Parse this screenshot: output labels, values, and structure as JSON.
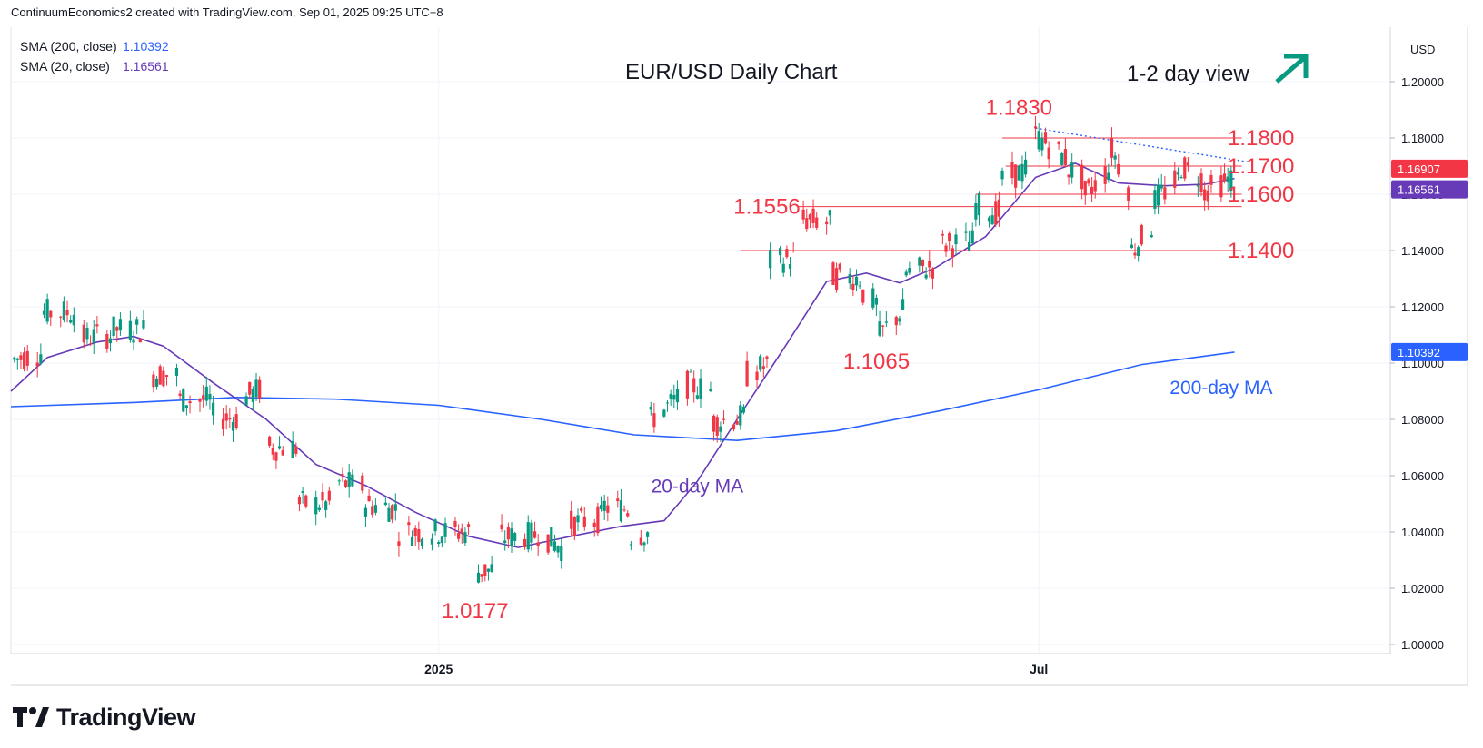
{
  "header": {
    "attribution": "ContinuumEconomics2 created with TradingView.com, Sep 01, 2025 09:25 UTC+8"
  },
  "legend": [
    {
      "label": "SMA (200, close)",
      "value": "1.10392",
      "color": "#2962ff"
    },
    {
      "label": "SMA (20, close)",
      "value": "1.16561",
      "color": "#673ab7"
    }
  ],
  "brand": {
    "name": "TradingView"
  },
  "chart_data": {
    "type": "candlestick",
    "title": "EUR/USD Daily Chart",
    "subtitle": "1-2 day view",
    "direction_icon": "up-right-arrow-icon",
    "currency": "USD",
    "ylim": [
      1.0,
      1.2
    ],
    "y_ticks": [
      "1.00000",
      "1.02000",
      "1.04000",
      "1.06000",
      "1.08000",
      "1.10000",
      "1.12000",
      "1.14000",
      "1.16000",
      "1.18000",
      "1.20000"
    ],
    "x_labels": [
      {
        "label": "2025",
        "x": "2025-01-01"
      },
      {
        "label": "Jul",
        "x": "2025-07-01"
      }
    ],
    "xlim": [
      "2024-08-25",
      "2025-10-15"
    ],
    "colors": {
      "up": "#089981",
      "down": "#f23645",
      "sma200": "#2962ff",
      "sma20": "#673ab7",
      "level": "#f23645",
      "arrow": "#089981",
      "trend": "#2962ff"
    },
    "price_labels": [
      {
        "value": "1.16907",
        "y": 1.16907,
        "color": "#f23645"
      },
      {
        "value": "1.16561",
        "y": 1.16561,
        "color": "#673ab7"
      },
      {
        "value": "1.10392",
        "y": 1.10392,
        "color": "#2962ff"
      }
    ],
    "levels": [
      {
        "label": "1.1800",
        "y": 1.18,
        "from": "2025-06-20"
      },
      {
        "label": "1.1700",
        "y": 1.17,
        "from": "2025-06-21"
      },
      {
        "label": "1.1600",
        "y": 1.16,
        "from": "2025-06-12"
      },
      {
        "label": "1.1556",
        "y": 1.1556,
        "from": "2025-04-19"
      },
      {
        "label": "1.1400",
        "y": 1.14,
        "from": "2025-04-02"
      }
    ],
    "annotations": [
      {
        "text": "1.1830",
        "x": "2025-06-25",
        "y": 1.183
      },
      {
        "text": "1.1556",
        "x": "2025-04-10",
        "y": 1.1556
      },
      {
        "text": "1.1065",
        "x": "2025-05-13",
        "y": 1.1065
      },
      {
        "text": "1.0177",
        "x": "2025-01-12",
        "y": 1.0177
      },
      {
        "text": "1.1800",
        "x": "2025-09-06",
        "y": 1.18
      },
      {
        "text": "1.1700",
        "x": "2025-09-06",
        "y": 1.17
      },
      {
        "text": "1.1600",
        "x": "2025-09-06",
        "y": 1.16
      },
      {
        "text": "1.1400",
        "x": "2025-09-06",
        "y": 1.14
      },
      {
        "text": "20-day MA",
        "x": "2025-03-20",
        "y": 1.054,
        "color": "#673ab7"
      },
      {
        "text": "200-day MA",
        "x": "2025-08-25",
        "y": 1.089,
        "color": "#2962ff"
      }
    ],
    "trendline": [
      {
        "x": "2025-06-30",
        "y": 1.1835
      },
      {
        "x": "2025-09-02",
        "y": 1.1715
      }
    ],
    "series": [
      {
        "name": "SMA (200, close)",
        "type": "line",
        "color": "#2962ff",
        "points": [
          [
            "2024-08-25",
            1.0845
          ],
          [
            "2024-10-01",
            1.086
          ],
          [
            "2024-11-01",
            1.0878
          ],
          [
            "2024-12-01",
            1.0872
          ],
          [
            "2025-01-01",
            1.085
          ],
          [
            "2025-02-01",
            1.08
          ],
          [
            "2025-03-01",
            1.0745
          ],
          [
            "2025-04-01",
            1.0725
          ],
          [
            "2025-05-01",
            1.076
          ],
          [
            "2025-06-01",
            1.083
          ],
          [
            "2025-07-01",
            1.0905
          ],
          [
            "2025-08-01",
            1.0995
          ],
          [
            "2025-08-29",
            1.1039
          ]
        ]
      },
      {
        "name": "SMA (20, close)",
        "type": "line",
        "color": "#673ab7",
        "points": [
          [
            "2024-08-25",
            1.09
          ],
          [
            "2024-09-05",
            1.102
          ],
          [
            "2024-09-20",
            1.1075
          ],
          [
            "2024-10-01",
            1.1095
          ],
          [
            "2024-10-10",
            1.106
          ],
          [
            "2024-10-25",
            1.093
          ],
          [
            "2024-11-10",
            1.08
          ],
          [
            "2024-11-25",
            1.064
          ],
          [
            "2024-12-10",
            1.0565
          ],
          [
            "2024-12-25",
            1.047
          ],
          [
            "2025-01-10",
            1.0385
          ],
          [
            "2025-01-25",
            1.0345
          ],
          [
            "2025-02-10",
            1.0385
          ],
          [
            "2025-02-25",
            1.042
          ],
          [
            "2025-03-10",
            1.044
          ],
          [
            "2025-03-20",
            1.058
          ],
          [
            "2025-04-01",
            1.08
          ],
          [
            "2025-04-15",
            1.105
          ],
          [
            "2025-04-28",
            1.129
          ],
          [
            "2025-05-10",
            1.132
          ],
          [
            "2025-05-20",
            1.1285
          ],
          [
            "2025-05-31",
            1.134
          ],
          [
            "2025-06-15",
            1.145
          ],
          [
            "2025-06-30",
            1.166
          ],
          [
            "2025-07-12",
            1.171
          ],
          [
            "2025-07-25",
            1.164
          ],
          [
            "2025-08-08",
            1.163
          ],
          [
            "2025-08-20",
            1.1635
          ],
          [
            "2025-08-29",
            1.1656
          ]
        ]
      },
      {
        "name": "EUR/USD",
        "type": "candlestick",
        "points": [
          [
            "2024-08-25",
            1.096,
            1.101
          ],
          [
            "2024-09-04",
            1.104,
            1.118
          ],
          [
            "2024-09-15",
            1.118,
            1.109
          ],
          [
            "2024-09-25",
            1.11,
            1.112
          ],
          [
            "2024-10-05",
            1.112,
            1.096
          ],
          [
            "2024-10-15",
            1.096,
            1.087
          ],
          [
            "2024-10-25",
            1.087,
            1.081
          ],
          [
            "2024-11-04",
            1.08,
            1.088
          ],
          [
            "2024-11-10",
            1.092,
            1.07
          ],
          [
            "2024-11-20",
            1.07,
            1.05
          ],
          [
            "2024-11-30",
            1.05,
            1.058
          ],
          [
            "2024-12-10",
            1.056,
            1.05
          ],
          [
            "2024-12-20",
            1.048,
            1.04
          ],
          [
            "2024-12-31",
            1.04,
            1.04
          ],
          [
            "2025-01-13",
            1.04,
            1.026
          ],
          [
            "2025-01-20",
            1.027,
            1.038
          ],
          [
            "2025-01-31",
            1.039,
            1.04
          ],
          [
            "2025-02-10",
            1.032,
            1.043
          ],
          [
            "2025-02-20",
            1.045,
            1.049
          ],
          [
            "2025-02-28",
            1.048,
            1.039
          ],
          [
            "2025-03-06",
            1.04,
            1.08
          ],
          [
            "2025-03-15",
            1.088,
            1.093
          ],
          [
            "2025-03-25",
            1.09,
            1.079
          ],
          [
            "2025-04-04",
            1.081,
            1.096
          ],
          [
            "2025-04-11",
            1.1,
            1.136
          ],
          [
            "2025-04-21",
            1.138,
            1.151
          ],
          [
            "2025-04-30",
            1.15,
            1.131
          ],
          [
            "2025-05-09",
            1.13,
            1.125
          ],
          [
            "2025-05-14",
            1.12,
            1.11
          ],
          [
            "2025-05-22",
            1.12,
            1.132
          ],
          [
            "2025-06-01",
            1.135,
            1.142
          ],
          [
            "2025-06-12",
            1.143,
            1.156
          ],
          [
            "2025-06-20",
            1.153,
            1.165
          ],
          [
            "2025-06-30",
            1.17,
            1.181
          ],
          [
            "2025-07-10",
            1.172,
            1.169
          ],
          [
            "2025-07-15",
            1.165,
            1.16
          ],
          [
            "2025-07-23",
            1.17,
            1.176
          ],
          [
            "2025-07-29",
            1.16,
            1.14
          ],
          [
            "2025-08-05",
            1.15,
            1.158
          ],
          [
            "2025-08-13",
            1.166,
            1.17
          ],
          [
            "2025-08-20",
            1.165,
            1.161
          ],
          [
            "2025-08-29",
            1.166,
            1.1691
          ]
        ]
      }
    ]
  }
}
